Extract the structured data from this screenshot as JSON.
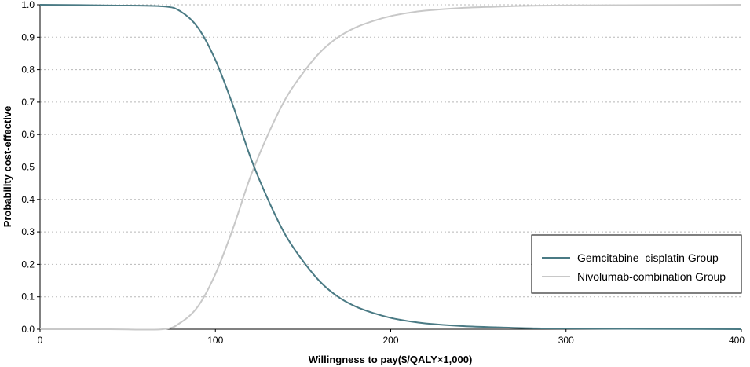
{
  "chart_data": {
    "type": "line",
    "title": "",
    "xlabel": "Willingness to pay($/QALY×1,000)",
    "ylabel": "Probability cost-effective",
    "xlim": [
      0,
      400
    ],
    "ylim": [
      0,
      1.0
    ],
    "xticks": [
      0,
      100,
      200,
      300,
      400
    ],
    "xtick_labels": [
      "0",
      "100",
      "200",
      "300",
      "400"
    ],
    "yticks": [
      0,
      0.1,
      0.2,
      0.3,
      0.4,
      0.5,
      0.6,
      0.7,
      0.8,
      0.9,
      1.0
    ],
    "ytick_labels": [
      "0.0",
      "0.1",
      "0.2",
      "0.3",
      "0.4",
      "0.5",
      "0.6",
      "0.7",
      "0.8",
      "0.9",
      "1.0"
    ],
    "grid": "horizontal dotted",
    "legend_position": "bottom-right",
    "series": [
      {
        "name": "Gemcitabine–cisplatin Group",
        "color": "#4a7a84",
        "x": [
          0,
          40,
          70,
          80,
          90,
          100,
          110,
          120,
          130,
          140,
          150,
          160,
          170,
          180,
          190,
          200,
          210,
          220,
          240,
          260,
          280,
          300,
          400
        ],
        "y": [
          1.0,
          0.998,
          0.995,
          0.98,
          0.93,
          0.83,
          0.69,
          0.53,
          0.4,
          0.29,
          0.21,
          0.145,
          0.1,
          0.07,
          0.05,
          0.035,
          0.025,
          0.018,
          0.01,
          0.006,
          0.003,
          0.002,
          0.0
        ]
      },
      {
        "name": "Nivolumab-combination Group",
        "color": "#c8c8c8",
        "x": [
          0,
          40,
          70,
          80,
          90,
          100,
          110,
          120,
          130,
          140,
          150,
          160,
          170,
          180,
          190,
          200,
          210,
          220,
          240,
          260,
          280,
          300,
          400
        ],
        "y": [
          0.0,
          0.0,
          0.0,
          0.02,
          0.07,
          0.17,
          0.31,
          0.47,
          0.6,
          0.71,
          0.79,
          0.855,
          0.9,
          0.93,
          0.95,
          0.965,
          0.975,
          0.982,
          0.99,
          0.994,
          0.997,
          0.998,
          1.0
        ]
      }
    ]
  }
}
